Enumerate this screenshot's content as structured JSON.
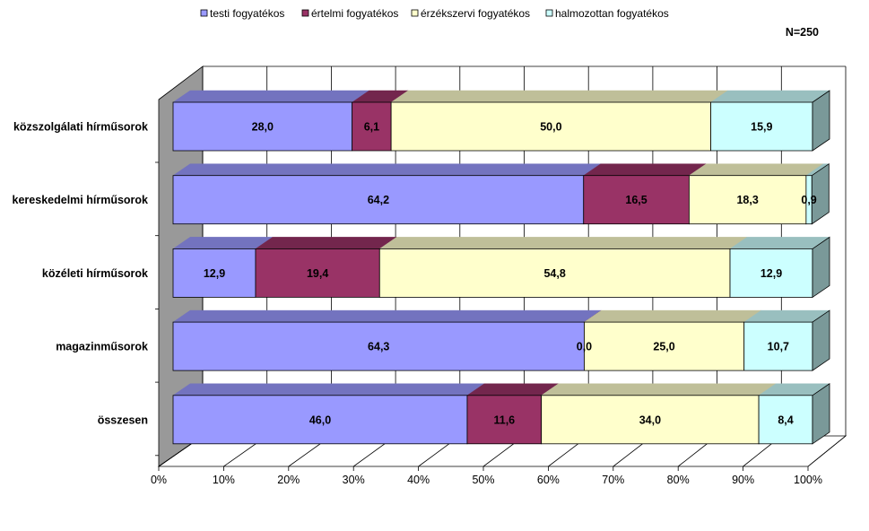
{
  "note": "N=250",
  "chart_data": {
    "type": "bar",
    "orientation": "horizontal",
    "stacking": "percent",
    "three_d": true,
    "grid": true,
    "legend_position": "top",
    "xlim": [
      0,
      100
    ],
    "x_ticks": [
      "0%",
      "10%",
      "20%",
      "30%",
      "40%",
      "50%",
      "60%",
      "70%",
      "80%",
      "90%",
      "100%"
    ],
    "categories": [
      "közszolgálati hírműsorok",
      "kereskedelmi hírműsorok",
      "közéleti hírműsorok",
      "magazinműsorok",
      "összesen"
    ],
    "series": [
      {
        "name": "testi fogyatékos",
        "color": "#9999ff",
        "values": [
          28.0,
          64.2,
          12.9,
          64.3,
          46.0
        ],
        "labels": [
          "28,0",
          "64,2",
          "12,9",
          "64,3",
          "46,0"
        ]
      },
      {
        "name": "értelmi fogyatékos",
        "color": "#993366",
        "values": [
          6.1,
          16.5,
          19.4,
          0.0,
          11.6
        ],
        "labels": [
          "6,1",
          "16,5",
          "19,4",
          "0,0",
          "11,6"
        ]
      },
      {
        "name": "érzékszervi fogyatékos",
        "color": "#ffffcc",
        "values": [
          50.0,
          18.3,
          54.8,
          25.0,
          34.0
        ],
        "labels": [
          "50,0",
          "18,3",
          "54,8",
          "25,0",
          "34,0"
        ]
      },
      {
        "name": "halmozottan fogyatékos",
        "color": "#ccffff",
        "values": [
          15.9,
          0.9,
          12.9,
          10.7,
          8.4
        ],
        "labels": [
          "15,9",
          "0,9",
          "12,9",
          "10,7",
          "8,4"
        ]
      }
    ]
  }
}
